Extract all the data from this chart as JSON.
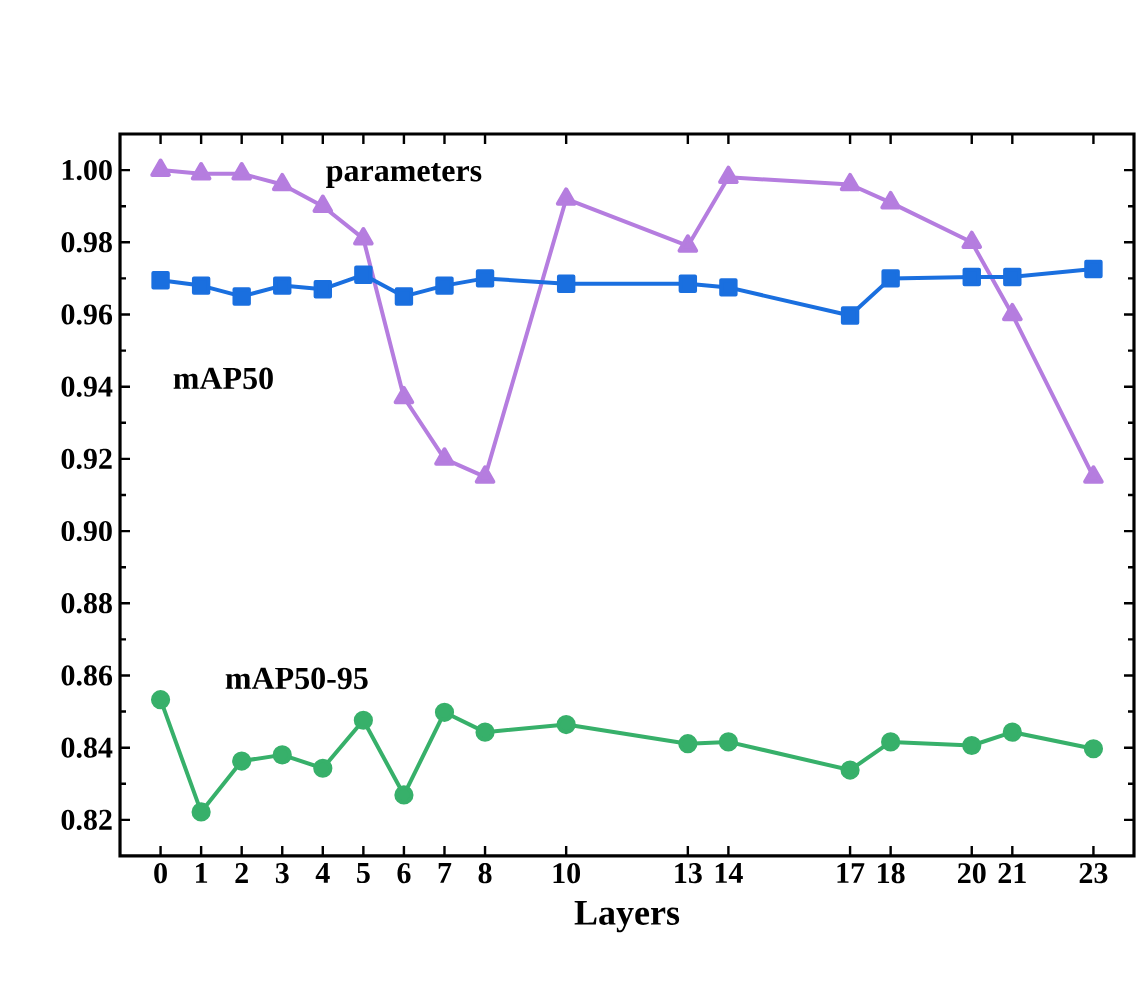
{
  "chart_data": {
    "type": "line",
    "xlabel": "Layers",
    "x": [
      0,
      1,
      2,
      3,
      4,
      5,
      6,
      7,
      8,
      10,
      13,
      14,
      17,
      18,
      20,
      21,
      23
    ],
    "xlim": [
      -1,
      24
    ],
    "xticks": [
      0,
      1,
      2,
      3,
      4,
      5,
      6,
      7,
      8,
      10,
      13,
      14,
      17,
      18,
      20,
      21,
      23
    ],
    "ylim": [
      0.81,
      1.01
    ],
    "yticks": [
      {
        "value": 0.82,
        "label": "0.82"
      },
      {
        "value": 0.84,
        "label": "0.84"
      },
      {
        "value": 0.86,
        "label": "0.86"
      },
      {
        "value": 0.88,
        "label": "0.88"
      },
      {
        "value": 0.9,
        "label": "0.90"
      },
      {
        "value": 0.92,
        "label": "0.92"
      },
      {
        "value": 0.94,
        "label": "0.94"
      },
      {
        "value": 0.96,
        "label": "0.96"
      },
      {
        "value": 0.98,
        "label": "0.98"
      },
      {
        "value": 1.0,
        "label": "1.00"
      }
    ],
    "series": [
      {
        "name": "parameters",
        "color": "#b57ddf",
        "marker": "triangle",
        "values": [
          1.0,
          0.999,
          0.999,
          0.996,
          0.99,
          0.981,
          0.937,
          0.92,
          0.915,
          0.992,
          0.979,
          0.998,
          0.996,
          0.991,
          0.98,
          0.96,
          0.915
        ]
      },
      {
        "name": "mAP50",
        "color": "#1a6fdf",
        "marker": "square",
        "values": [
          0.9695,
          0.968,
          0.965,
          0.968,
          0.967,
          0.971,
          0.965,
          0.968,
          0.97,
          0.9685,
          0.9685,
          0.9675,
          0.9597,
          0.97,
          0.9704,
          0.9704,
          0.9726
        ]
      },
      {
        "name": "mAP50-95",
        "color": "#37b06a",
        "marker": "circle",
        "values": [
          0.8533,
          0.8222,
          0.8363,
          0.838,
          0.8343,
          0.8476,
          0.8269,
          0.8498,
          0.8443,
          0.8464,
          0.8411,
          0.8416,
          0.8338,
          0.8416,
          0.8406,
          0.8443,
          0.8397
        ]
      }
    ]
  }
}
